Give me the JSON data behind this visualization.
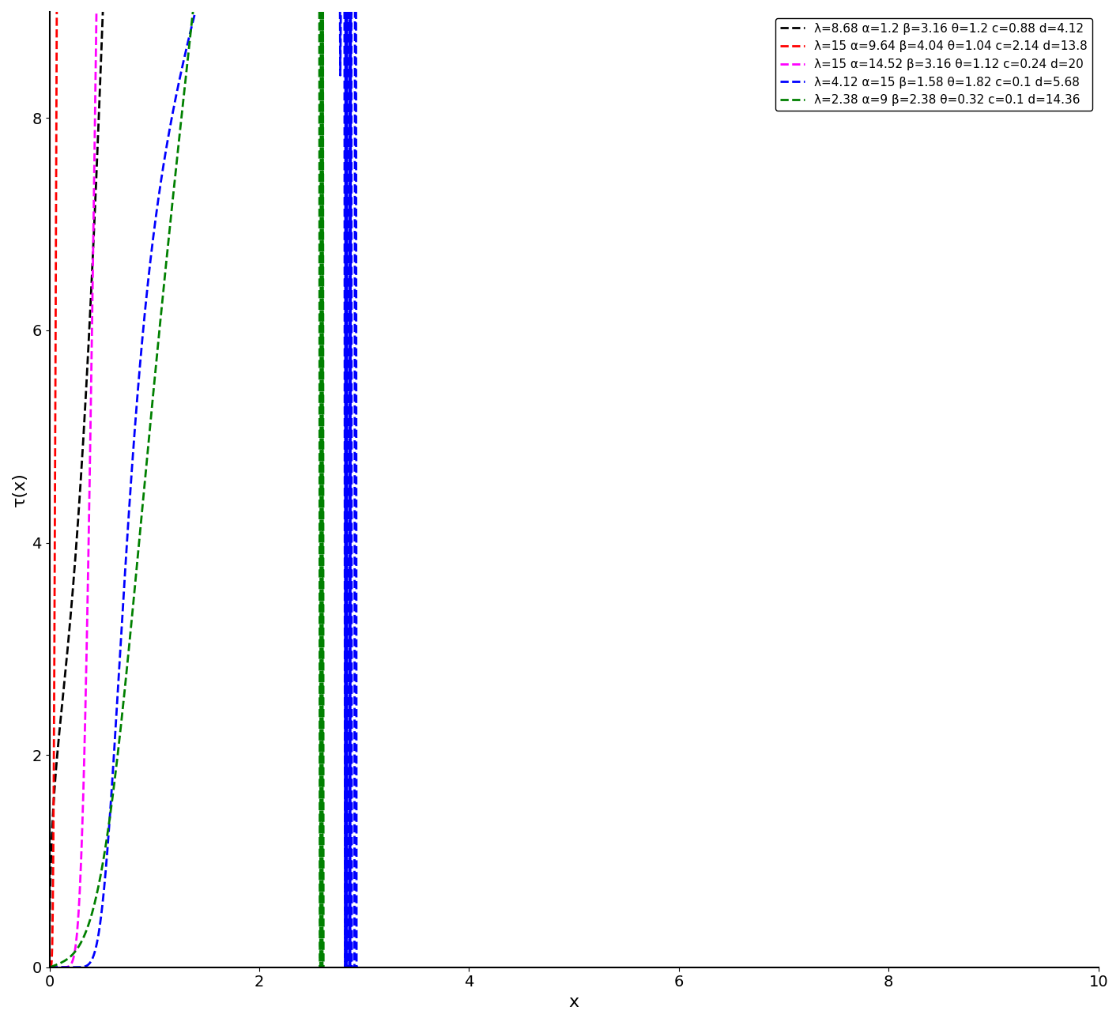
{
  "curves": [
    {
      "lambda": 8.68,
      "alpha": 1.2,
      "beta": 3.16,
      "theta": 1.2,
      "c": 0.88,
      "d": 4.12,
      "color": "black",
      "label": "λ=8.68 α=1.2 β=3.16 θ=1.2 c=0.88 d=4.12"
    },
    {
      "lambda": 15,
      "alpha": 9.64,
      "beta": 4.04,
      "theta": 1.04,
      "c": 2.14,
      "d": 13.8,
      "color": "red",
      "label": "λ=15 α=9.64 β=4.04 θ=1.04 c=2.14 d=13.8"
    },
    {
      "lambda": 15,
      "alpha": 14.52,
      "beta": 3.16,
      "theta": 1.12,
      "c": 0.24,
      "d": 20,
      "color": "magenta",
      "label": "λ=15 α=14.52 β=3.16 θ=1.12 c=0.24 d=20"
    },
    {
      "lambda": 4.12,
      "alpha": 15,
      "beta": 1.58,
      "theta": 1.82,
      "c": 0.1,
      "d": 5.68,
      "color": "blue",
      "label": "λ=4.12 α=15 β=1.58 θ=1.82 c=0.1 d=5.68"
    },
    {
      "lambda": 2.38,
      "alpha": 9,
      "beta": 2.38,
      "theta": 0.32,
      "c": 0.1,
      "d": 14.36,
      "color": "green",
      "label": "λ=2.38 α=9 β=2.38 θ=0.32 c=0.1 d=14.36"
    }
  ],
  "xlim": [
    0,
    10
  ],
  "ylim": [
    0,
    9
  ],
  "xlabel": "x",
  "ylabel": "τ(x)",
  "title": "",
  "background_color": "white",
  "yticks": [
    0,
    2,
    4,
    6,
    8
  ],
  "xticks": [
    0,
    2,
    4,
    6,
    8,
    10
  ]
}
